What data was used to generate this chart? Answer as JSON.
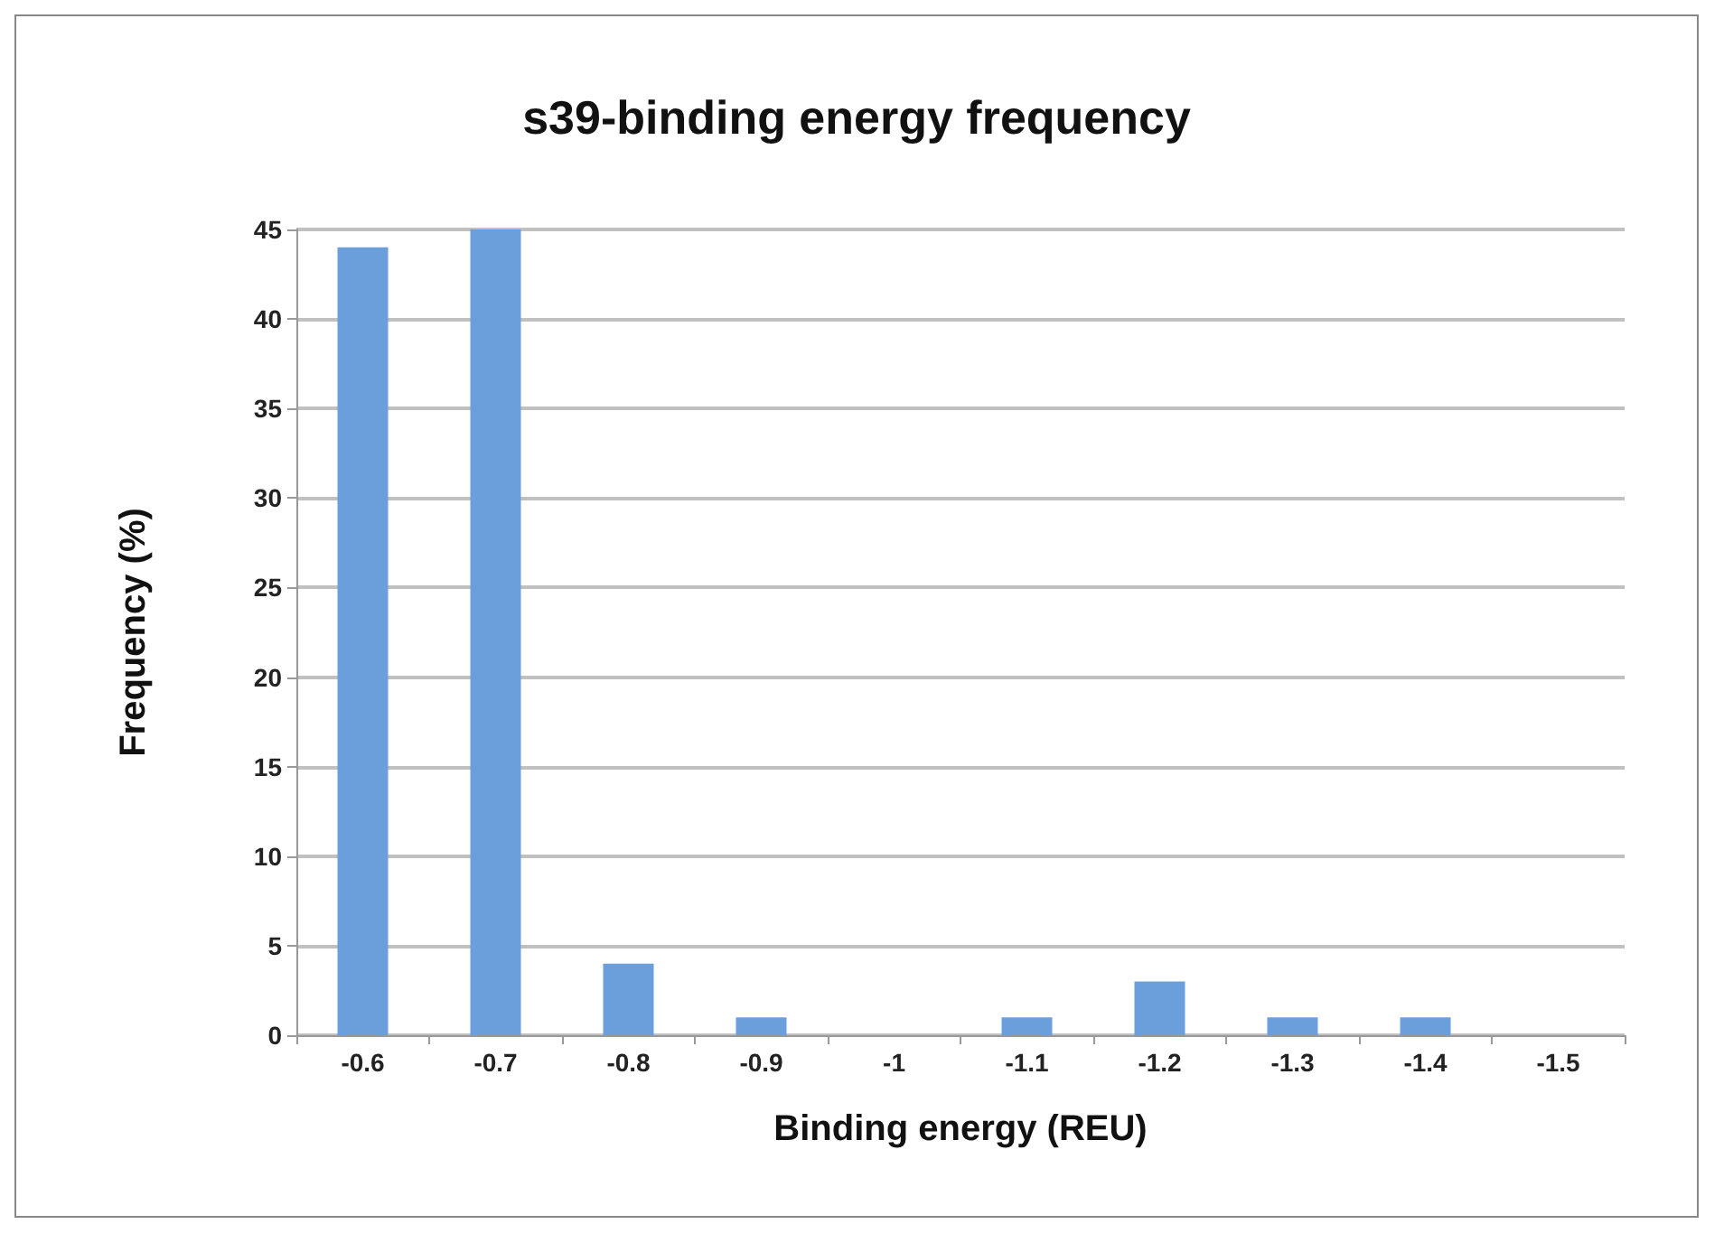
{
  "chart_data": {
    "type": "bar",
    "title": "s39-binding energy frequency",
    "xlabel": "Binding energy (REU)",
    "ylabel": "Frequency (%)",
    "categories": [
      "-0.6",
      "-0.7",
      "-0.8",
      "-0.9",
      "-1",
      "-1.1",
      "-1.2",
      "-1.3",
      "-1.4",
      "-1.5"
    ],
    "values": [
      44,
      45,
      4,
      1,
      0,
      1,
      3,
      1,
      1,
      0
    ],
    "color": "#6a9fdc",
    "ylim": [
      0,
      45
    ],
    "yticks": [
      0,
      5,
      10,
      15,
      20,
      25,
      30,
      35,
      40,
      45
    ],
    "grid": "y"
  }
}
